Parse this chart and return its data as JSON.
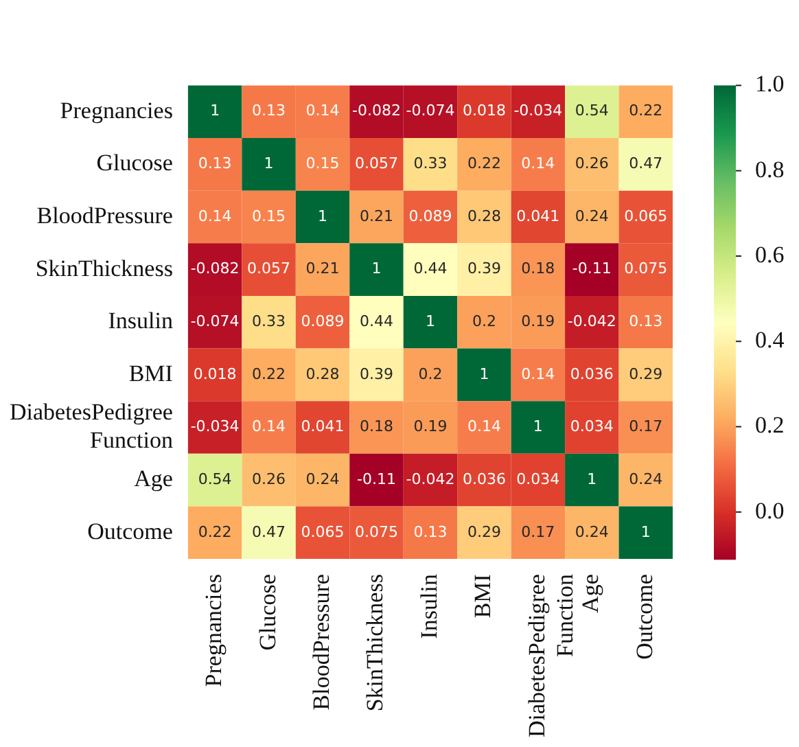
{
  "chart_data": {
    "type": "heatmap",
    "categories": [
      "Pregnancies",
      "Glucose",
      "BloodPressure",
      "SkinThickness",
      "Insulin",
      "BMI",
      "DiabetesPedigree Function",
      "Age",
      "Outcome"
    ],
    "y_categories": [
      "Pregnancies",
      "Glucose",
      "BloodPressure",
      "SkinThickness",
      "Insulin",
      "BMI",
      "DiabetesPedigree Function",
      "Age",
      "Outcome"
    ],
    "cells": [
      [
        1,
        0.13,
        0.14,
        -0.082,
        -0.074,
        0.018,
        -0.034,
        0.54,
        0.22
      ],
      [
        0.13,
        1,
        0.15,
        0.057,
        0.33,
        0.22,
        0.14,
        0.26,
        0.47
      ],
      [
        0.14,
        0.15,
        1,
        0.21,
        0.089,
        0.28,
        0.041,
        0.24,
        0.065
      ],
      [
        -0.082,
        0.057,
        0.21,
        1,
        0.44,
        0.39,
        0.18,
        -0.11,
        0.075
      ],
      [
        -0.074,
        0.33,
        0.089,
        0.44,
        1,
        0.2,
        0.19,
        -0.042,
        0.13
      ],
      [
        0.018,
        0.22,
        0.28,
        0.39,
        0.2,
        1,
        0.14,
        0.036,
        0.29
      ],
      [
        -0.034,
        0.14,
        0.041,
        0.18,
        0.19,
        0.14,
        1,
        0.034,
        0.17
      ],
      [
        0.54,
        0.26,
        0.24,
        -0.11,
        -0.042,
        0.036,
        0.034,
        1,
        0.24
      ],
      [
        0.22,
        0.47,
        0.065,
        0.075,
        0.13,
        0.29,
        0.17,
        0.24,
        1
      ]
    ],
    "clim": [
      -0.11,
      1
    ],
    "cticks": [
      {
        "value": 0,
        "label": "0.0"
      },
      {
        "value": 0.2,
        "label": "0.2"
      },
      {
        "value": 0.4,
        "label": "0.4"
      },
      {
        "value": 0.6,
        "label": "0.6"
      },
      {
        "value": 0.8,
        "label": "0.8"
      },
      {
        "value": 1,
        "label": "1.0"
      }
    ],
    "data_labels": true
  }
}
